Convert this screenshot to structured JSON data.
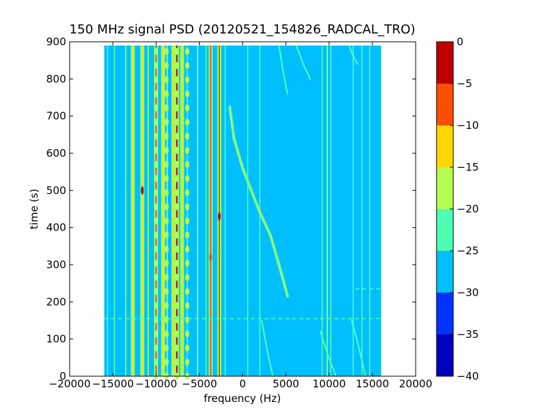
{
  "chart_data": {
    "type": "heatmap",
    "title": "150 MHz signal PSD (20120521_154826_RADCAL_TRO)",
    "xlabel": "frequency (Hz)",
    "ylabel": "time (s)",
    "xlim": [
      -20000,
      20000
    ],
    "ylim": [
      0,
      900
    ],
    "xticks": [
      -20000,
      -15000,
      -10000,
      -5000,
      0,
      5000,
      10000,
      15000,
      20000
    ],
    "yticks": [
      0,
      100,
      200,
      300,
      400,
      500,
      600,
      700,
      800,
      900
    ],
    "data_extent": {
      "x": [
        -16000,
        16000
      ],
      "y": [
        0,
        890
      ]
    },
    "background_level": -27.5,
    "colorbar": {
      "ticks": [
        0,
        -5,
        -10,
        -15,
        -20,
        -25,
        -30,
        -35,
        -40
      ],
      "bands": [
        {
          "range": [
            -40,
            -35
          ],
          "color": "#0000bf"
        },
        {
          "range": [
            -35,
            -30
          ],
          "color": "#0033ff"
        },
        {
          "range": [
            -30,
            -25
          ],
          "color": "#00bfff"
        },
        {
          "range": [
            -25,
            -20
          ],
          "color": "#4dffb3"
        },
        {
          "range": [
            -20,
            -15
          ],
          "color": "#b3ff4d"
        },
        {
          "range": [
            -15,
            -10
          ],
          "color": "#ffd700"
        },
        {
          "range": [
            -10,
            -5
          ],
          "color": "#ff4d00"
        },
        {
          "range": [
            -5,
            0
          ],
          "color": "#c00000"
        }
      ]
    },
    "vertical_lines": [
      {
        "x": -15600,
        "level": -22
      },
      {
        "x": -14800,
        "level": -22
      },
      {
        "x": -13500,
        "level": -17
      },
      {
        "x": -12700,
        "level": -12
      },
      {
        "x": -11600,
        "level": -12
      },
      {
        "x": -10900,
        "level": -17
      },
      {
        "x": -10000,
        "level": -7
      },
      {
        "x": -9200,
        "level": -12
      },
      {
        "x": -8700,
        "level": -17
      },
      {
        "x": -8000,
        "level": -12
      },
      {
        "x": -7600,
        "level": -2
      },
      {
        "x": -7000,
        "level": -12
      },
      {
        "x": -6400,
        "level": -22
      },
      {
        "x": -5200,
        "level": -17
      },
      {
        "x": -4200,
        "level": -22
      },
      {
        "x": -3700,
        "level": -7
      },
      {
        "x": -2700,
        "level": -7
      },
      {
        "x": -2000,
        "level": -22
      },
      {
        "x": 600,
        "level": -22
      },
      {
        "x": 2000,
        "level": -22
      },
      {
        "x": 9200,
        "level": -22
      },
      {
        "x": 9800,
        "level": -17
      },
      {
        "x": 10200,
        "level": -22
      },
      {
        "x": 12800,
        "level": -22
      },
      {
        "x": 13800,
        "level": -22
      },
      {
        "x": 14700,
        "level": -22
      }
    ],
    "curves": [
      {
        "level": -17,
        "points": [
          [
            -1500,
            725
          ],
          [
            -1000,
            640
          ],
          [
            0,
            560
          ],
          [
            1000,
            500
          ],
          [
            2000,
            440
          ],
          [
            3200,
            380
          ],
          [
            4200,
            300
          ],
          [
            4800,
            250
          ],
          [
            5200,
            215
          ]
        ]
      },
      {
        "level": -22,
        "points": [
          [
            4200,
            890
          ],
          [
            4600,
            830
          ],
          [
            5000,
            780
          ],
          [
            5200,
            760
          ]
        ]
      },
      {
        "level": -22,
        "points": [
          [
            6200,
            890
          ],
          [
            7000,
            840
          ],
          [
            7800,
            800
          ]
        ]
      },
      {
        "level": -22,
        "points": [
          [
            12300,
            890
          ],
          [
            12800,
            860
          ],
          [
            13300,
            840
          ]
        ]
      },
      {
        "level": -22,
        "points": [
          [
            2200,
            150
          ],
          [
            2600,
            100
          ],
          [
            3000,
            50
          ],
          [
            3500,
            0
          ]
        ]
      },
      {
        "level": -22,
        "points": [
          [
            9000,
            120
          ],
          [
            9800,
            60
          ],
          [
            10800,
            0
          ]
        ]
      },
      {
        "level": -22,
        "points": [
          [
            12600,
            150
          ],
          [
            13300,
            90
          ],
          [
            14200,
            0
          ]
        ]
      }
    ],
    "horizontal_lines": [
      {
        "y": 155,
        "x0": -16000,
        "x1": 16000,
        "level": -22
      },
      {
        "y": 235,
        "x0": 13000,
        "x1": 16000,
        "level": -22
      }
    ],
    "blobs": [
      {
        "y_from": 0,
        "y_to": 890,
        "step": 38,
        "x": [
          -10000,
          -8800,
          -7600,
          -6400
        ],
        "level": -17
      }
    ],
    "hotspots": [
      {
        "x": -2700,
        "y": 430,
        "level": -2
      },
      {
        "x": -3700,
        "y": 320,
        "level": -7
      },
      {
        "x": -11600,
        "y": 500,
        "level": -2
      }
    ]
  }
}
